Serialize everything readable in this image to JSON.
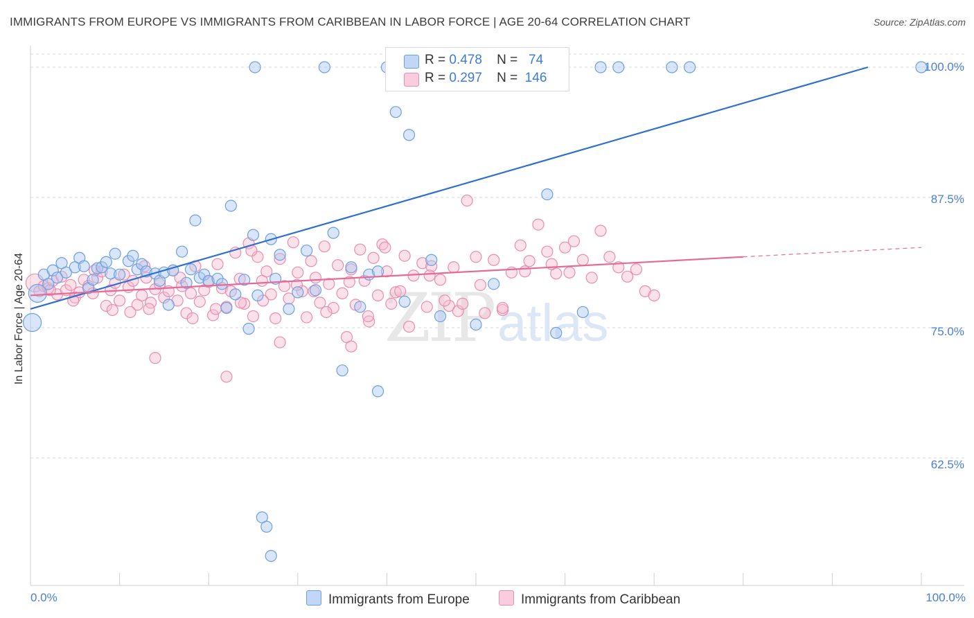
{
  "header": {
    "title": "IMMIGRANTS FROM EUROPE VS IMMIGRANTS FROM CARIBBEAN IN LABOR FORCE | AGE 20-64 CORRELATION CHART",
    "source": "Source: ZipAtlas.com"
  },
  "watermark": {
    "zip": "ZIP",
    "atlas": "atlas"
  },
  "legend": {
    "europe": {
      "r_label": "R =",
      "r_value": "0.478",
      "n_label": "N =",
      "n_value": "74"
    },
    "caribbean": {
      "r_label": "R =",
      "r_value": "0.297",
      "n_label": "N =",
      "n_value": "146"
    }
  },
  "bottom_legend": {
    "europe": "Immigrants from Europe",
    "caribbean": "Immigrants from Caribbean"
  },
  "colors": {
    "europe_fill": "#aac8f2",
    "europe_stroke": "#6c9fe0",
    "europe_line": "#2e6fd0",
    "caribbean_fill": "#f7bcd0",
    "caribbean_stroke": "#ea8cae",
    "caribbean_line": "#e56b97",
    "tick_label": "#4a7fcf",
    "grid": "#d8d8d8"
  },
  "chart_data": {
    "type": "scatter",
    "ylabel": "In Labor Force | Age 20-64",
    "xlabel": "",
    "xlim": [
      0,
      100
    ],
    "ylim": [
      50,
      101.5
    ],
    "y_ticks": [
      "62.5%",
      "75.0%",
      "87.5%",
      "100.0%"
    ],
    "y_tick_values": [
      62.5,
      75,
      87.5,
      100
    ],
    "x_tick_labels": [
      "0.0%",
      "100.0%"
    ],
    "grid": "horizontal dashed",
    "legend_position": "top-center",
    "series": [
      {
        "name": "Immigrants from Europe",
        "trend": {
          "x0": 0,
          "y0": 76.8,
          "x1": 94,
          "y1": 100.0
        },
        "points": [
          [
            0.2,
            75.5
          ],
          [
            0.8,
            78.3
          ],
          [
            1.5,
            80.1
          ],
          [
            2.0,
            79.2
          ],
          [
            2.5,
            80.5
          ],
          [
            3.0,
            79.8
          ],
          [
            3.5,
            81.2
          ],
          [
            4.0,
            80.3
          ],
          [
            5.0,
            80.8
          ],
          [
            5.5,
            81.7
          ],
          [
            6.0,
            80.9
          ],
          [
            6.5,
            78.8
          ],
          [
            7.0,
            79.6
          ],
          [
            7.5,
            80.7
          ],
          [
            8.0,
            80.8
          ],
          [
            8.5,
            81.3
          ],
          [
            9.0,
            80.2
          ],
          [
            9.5,
            82.1
          ],
          [
            10.0,
            80.1
          ],
          [
            11.0,
            81.4
          ],
          [
            11.5,
            81.9
          ],
          [
            12.0,
            80.6
          ],
          [
            12.5,
            81.1
          ],
          [
            13.0,
            80.4
          ],
          [
            14.0,
            80.2
          ],
          [
            14.5,
            79.5
          ],
          [
            15.0,
            80.3
          ],
          [
            15.5,
            77.2
          ],
          [
            16.0,
            80.5
          ],
          [
            17.0,
            82.3
          ],
          [
            17.5,
            79.3
          ],
          [
            18.0,
            80.6
          ],
          [
            18.5,
            85.3
          ],
          [
            19.0,
            79.8
          ],
          [
            19.5,
            80.1
          ],
          [
            20.0,
            79.5
          ],
          [
            21.0,
            79.7
          ],
          [
            21.5,
            79.2
          ],
          [
            22.0,
            76.9
          ],
          [
            22.5,
            86.7
          ],
          [
            23.0,
            78.2
          ],
          [
            24.0,
            79.6
          ],
          [
            24.5,
            74.9
          ],
          [
            25.0,
            83.9
          ],
          [
            25.5,
            78.1
          ],
          [
            27.0,
            83.5
          ],
          [
            27.5,
            79.7
          ],
          [
            28.0,
            82.0
          ],
          [
            29.0,
            76.8
          ],
          [
            30.0,
            78.4
          ],
          [
            31.0,
            82.4
          ],
          [
            32.0,
            78.6
          ],
          [
            34.0,
            84.1
          ],
          [
            36.0,
            80.8
          ],
          [
            37.0,
            77.0
          ],
          [
            38.0,
            80.1
          ],
          [
            39.0,
            80.4
          ],
          [
            41.0,
            95.7
          ],
          [
            42.0,
            77.5
          ],
          [
            45.0,
            81.5
          ],
          [
            46.0,
            76.1
          ],
          [
            50.0,
            75.3
          ],
          [
            52.0,
            79.2
          ],
          [
            58.0,
            87.8
          ],
          [
            62.0,
            76.5
          ],
          [
            64.0,
            100.0
          ],
          [
            66.0,
            100.0
          ],
          [
            72.0,
            100.0
          ],
          [
            74.0,
            100.0
          ],
          [
            100.0,
            100.0
          ],
          [
            26.0,
            56.8
          ],
          [
            26.5,
            55.9
          ],
          [
            27.0,
            53.1
          ],
          [
            35.0,
            70.9
          ],
          [
            39.0,
            68.9
          ],
          [
            42.5,
            93.5
          ],
          [
            59.0,
            74.5
          ],
          [
            40.0,
            100.0
          ],
          [
            33.0,
            100.0
          ],
          [
            25.2,
            100.0
          ]
        ]
      },
      {
        "name": "Immigrants from Caribbean",
        "trend": {
          "x0": 0,
          "y0": 78.1,
          "x1": 80,
          "y1": 81.8
        },
        "trend_dashed": {
          "x0": 80,
          "y0": 81.8,
          "x1": 100,
          "y1": 82.7
        },
        "points": [
          [
            0.5,
            79.3
          ],
          [
            1.0,
            78.5
          ],
          [
            1.5,
            79.0
          ],
          [
            2.0,
            78.8
          ],
          [
            2.5,
            79.5
          ],
          [
            3.0,
            78.2
          ],
          [
            3.5,
            79.9
          ],
          [
            4.0,
            78.6
          ],
          [
            4.5,
            79.1
          ],
          [
            5.0,
            77.9
          ],
          [
            5.5,
            78.4
          ],
          [
            6.0,
            79.6
          ],
          [
            6.5,
            79.0
          ],
          [
            7.0,
            78.3
          ],
          [
            7.5,
            79.8
          ],
          [
            8.0,
            80.4
          ],
          [
            8.5,
            77.1
          ],
          [
            9.0,
            78.6
          ],
          [
            9.5,
            79.3
          ],
          [
            10.0,
            77.6
          ],
          [
            10.5,
            80.1
          ],
          [
            11.0,
            78.9
          ],
          [
            11.5,
            79.5
          ],
          [
            12.0,
            77.2
          ],
          [
            12.5,
            78.1
          ],
          [
            13.0,
            79.8
          ],
          [
            13.5,
            77.4
          ],
          [
            14.0,
            78.7
          ],
          [
            14.5,
            79.2
          ],
          [
            15.0,
            77.9
          ],
          [
            15.5,
            78.5
          ],
          [
            16.0,
            80.5
          ],
          [
            16.5,
            77.6
          ],
          [
            17.0,
            79.0
          ],
          [
            17.5,
            76.4
          ],
          [
            18.0,
            78.3
          ],
          [
            18.5,
            80.9
          ],
          [
            19.0,
            77.5
          ],
          [
            19.5,
            78.6
          ],
          [
            20.0,
            79.4
          ],
          [
            20.5,
            76.2
          ],
          [
            21.0,
            81.1
          ],
          [
            21.5,
            78.8
          ],
          [
            22.0,
            77.0
          ],
          [
            22.5,
            78.5
          ],
          [
            23.0,
            82.2
          ],
          [
            23.5,
            79.7
          ],
          [
            24.0,
            77.3
          ],
          [
            24.5,
            83.1
          ],
          [
            25.0,
            76.1
          ],
          [
            25.5,
            81.8
          ],
          [
            26.0,
            79.5
          ],
          [
            26.5,
            80.4
          ],
          [
            27.0,
            78.2
          ],
          [
            27.5,
            75.9
          ],
          [
            28.0,
            81.6
          ],
          [
            28.5,
            79.0
          ],
          [
            29.0,
            77.8
          ],
          [
            29.5,
            83.2
          ],
          [
            30.0,
            80.3
          ],
          [
            30.5,
            78.5
          ],
          [
            31.0,
            76.0
          ],
          [
            31.5,
            81.4
          ],
          [
            32.0,
            79.8
          ],
          [
            32.5,
            77.4
          ],
          [
            33.0,
            82.8
          ],
          [
            33.5,
            79.2
          ],
          [
            34.0,
            76.9
          ],
          [
            34.5,
            81.0
          ],
          [
            35.0,
            78.3
          ],
          [
            35.5,
            74.1
          ],
          [
            36.0,
            80.6
          ],
          [
            36.5,
            77.2
          ],
          [
            37.0,
            82.5
          ],
          [
            37.5,
            79.5
          ],
          [
            38.0,
            75.6
          ],
          [
            38.5,
            81.7
          ],
          [
            39.0,
            78.1
          ],
          [
            39.5,
            83.0
          ],
          [
            40.0,
            80.4
          ],
          [
            40.5,
            77.3
          ],
          [
            41.0,
            78.4
          ],
          [
            42.0,
            81.9
          ],
          [
            42.5,
            75.1
          ],
          [
            43.0,
            80.0
          ],
          [
            44.0,
            81.2
          ],
          [
            44.5,
            77.0
          ],
          [
            45.0,
            80.9
          ],
          [
            46.0,
            79.6
          ],
          [
            47.0,
            77.1
          ],
          [
            47.5,
            80.8
          ],
          [
            48.0,
            76.6
          ],
          [
            49.0,
            87.2
          ],
          [
            50.0,
            81.8
          ],
          [
            50.5,
            79.1
          ],
          [
            51.0,
            76.4
          ],
          [
            52.0,
            81.5
          ],
          [
            53.0,
            76.7
          ],
          [
            54.0,
            80.3
          ],
          [
            55.0,
            82.9
          ],
          [
            56.0,
            81.4
          ],
          [
            57.0,
            84.9
          ],
          [
            58.0,
            82.3
          ],
          [
            59.0,
            80.2
          ],
          [
            60.0,
            82.7
          ],
          [
            61.0,
            83.3
          ],
          [
            62.0,
            81.5
          ],
          [
            63.0,
            79.8
          ],
          [
            64.0,
            84.3
          ],
          [
            65.0,
            81.8
          ],
          [
            66.0,
            80.8
          ],
          [
            67.0,
            79.9
          ],
          [
            68.0,
            80.6
          ],
          [
            69.0,
            78.5
          ],
          [
            70.0,
            78.1
          ],
          [
            14.0,
            72.1
          ],
          [
            22.0,
            70.3
          ],
          [
            28.0,
            73.6
          ],
          [
            36.0,
            73.2
          ],
          [
            53.0,
            76.9
          ],
          [
            2.2,
            78.6
          ],
          [
            4.8,
            77.6
          ],
          [
            9.2,
            76.7
          ],
          [
            11.2,
            76.5
          ],
          [
            13.3,
            76.8
          ],
          [
            18.2,
            75.9
          ],
          [
            20.8,
            76.8
          ],
          [
            23.6,
            77.4
          ],
          [
            26.1,
            77.6
          ],
          [
            29.9,
            79.1
          ],
          [
            33.2,
            76.5
          ],
          [
            37.9,
            76.1
          ],
          [
            41.5,
            78.5
          ],
          [
            46.5,
            77.6
          ],
          [
            48.5,
            77.3
          ],
          [
            55.5,
            80.4
          ],
          [
            58.5,
            81.1
          ],
          [
            60.5,
            80.3
          ],
          [
            44.8,
            80.0
          ],
          [
            31.8,
            78.5
          ],
          [
            16.8,
            79.8
          ],
          [
            12.8,
            80.9
          ],
          [
            7.2,
            80.5
          ],
          [
            24.8,
            82.4
          ],
          [
            35.8,
            79.4
          ],
          [
            39.8,
            82.7
          ]
        ]
      }
    ]
  }
}
